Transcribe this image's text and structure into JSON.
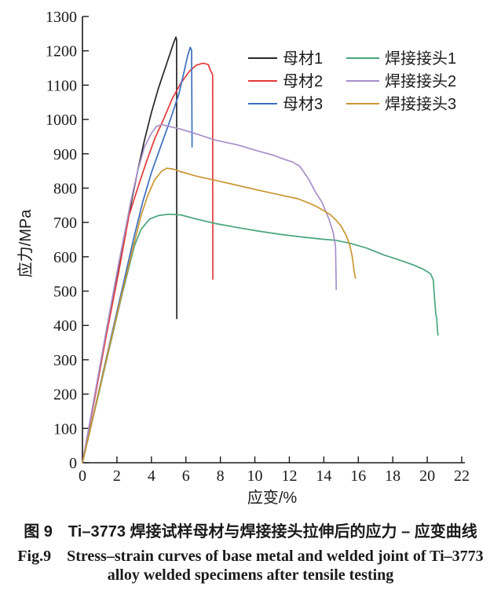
{
  "chart_data": {
    "type": "line",
    "title": "",
    "xlabel": "应变/%",
    "ylabel": "应力/MPa",
    "xlim": [
      0,
      22
    ],
    "ylim": [
      0,
      1300
    ],
    "xticks": [
      0,
      2,
      4,
      6,
      8,
      10,
      12,
      14,
      16,
      18,
      20,
      22
    ],
    "yticks": [
      0,
      100,
      200,
      300,
      400,
      500,
      600,
      700,
      800,
      900,
      1000,
      1100,
      1200,
      1300
    ],
    "grid": false,
    "axis_color": "#1a1a1a",
    "legend_position": "upper-right-inside, two columns",
    "series": [
      {
        "name": "母材1",
        "color": "#262626",
        "points": [
          [
            0,
            0
          ],
          [
            0.7,
            190
          ],
          [
            1.4,
            380
          ],
          [
            2.1,
            565
          ],
          [
            2.8,
            750
          ],
          [
            3.2,
            850
          ],
          [
            3.6,
            940
          ],
          [
            4.0,
            1020
          ],
          [
            4.4,
            1090
          ],
          [
            4.8,
            1150
          ],
          [
            5.1,
            1195
          ],
          [
            5.3,
            1225
          ],
          [
            5.42,
            1240
          ],
          [
            5.46,
            1232
          ],
          [
            5.47,
            420
          ]
        ]
      },
      {
        "name": "母材2",
        "color": "#e23a3a",
        "points": [
          [
            0,
            0
          ],
          [
            0.7,
            185
          ],
          [
            1.4,
            375
          ],
          [
            2.1,
            555
          ],
          [
            2.7,
            720
          ],
          [
            3.2,
            800
          ],
          [
            3.7,
            875
          ],
          [
            4.2,
            945
          ],
          [
            4.7,
            1000
          ],
          [
            5.2,
            1060
          ],
          [
            5.7,
            1105
          ],
          [
            6.2,
            1140
          ],
          [
            6.6,
            1158
          ],
          [
            7.0,
            1164
          ],
          [
            7.3,
            1160
          ],
          [
            7.4,
            1145
          ],
          [
            7.5,
            1136
          ],
          [
            7.55,
            1130
          ],
          [
            7.56,
            535
          ]
        ]
      },
      {
        "name": "母材3",
        "color": "#3d6ebf",
        "points": [
          [
            0,
            0
          ],
          [
            0.75,
            165
          ],
          [
            1.5,
            330
          ],
          [
            2.25,
            495
          ],
          [
            3.0,
            660
          ],
          [
            3.5,
            760
          ],
          [
            4.0,
            845
          ],
          [
            4.6,
            930
          ],
          [
            5.1,
            1000
          ],
          [
            5.6,
            1075
          ],
          [
            5.9,
            1140
          ],
          [
            6.1,
            1185
          ],
          [
            6.25,
            1210
          ],
          [
            6.33,
            1202
          ],
          [
            6.36,
            920
          ]
        ]
      },
      {
        "name": "焊接接头1",
        "color": "#49a57d",
        "points": [
          [
            0,
            0
          ],
          [
            0.75,
            160
          ],
          [
            1.5,
            320
          ],
          [
            2.25,
            480
          ],
          [
            3.0,
            630
          ],
          [
            3.4,
            680
          ],
          [
            3.9,
            710
          ],
          [
            4.4,
            720
          ],
          [
            5.0,
            724
          ],
          [
            5.7,
            722
          ],
          [
            6.6,
            710
          ],
          [
            7.7,
            697
          ],
          [
            9.0,
            685
          ],
          [
            10.2,
            675
          ],
          [
            11.5,
            665
          ],
          [
            12.8,
            657
          ],
          [
            14.0,
            651
          ],
          [
            14.7,
            648
          ],
          [
            15.5,
            640
          ],
          [
            16.5,
            625
          ],
          [
            17.5,
            605
          ],
          [
            18.3,
            592
          ],
          [
            19.2,
            576
          ],
          [
            19.8,
            563
          ],
          [
            20.2,
            550
          ],
          [
            20.35,
            532
          ],
          [
            20.42,
            480
          ],
          [
            20.5,
            432
          ],
          [
            20.55,
            420
          ],
          [
            20.6,
            380
          ],
          [
            20.63,
            372
          ]
        ]
      },
      {
        "name": "焊接接头2",
        "color": "#a78fc9",
        "points": [
          [
            0,
            0
          ],
          [
            0.7,
            195
          ],
          [
            1.4,
            390
          ],
          [
            2.1,
            580
          ],
          [
            2.8,
            760
          ],
          [
            3.2,
            850
          ],
          [
            3.6,
            920
          ],
          [
            4.0,
            960
          ],
          [
            4.3,
            980
          ],
          [
            4.6,
            985
          ],
          [
            5.0,
            980
          ],
          [
            5.7,
            972
          ],
          [
            6.6,
            958
          ],
          [
            7.7,
            940
          ],
          [
            9.0,
            926
          ],
          [
            10.2,
            908
          ],
          [
            11.0,
            897
          ],
          [
            11.6,
            886
          ],
          [
            12.2,
            876
          ],
          [
            12.6,
            864
          ],
          [
            13.1,
            828
          ],
          [
            13.5,
            790
          ],
          [
            13.9,
            758
          ],
          [
            14.3,
            710
          ],
          [
            14.55,
            670
          ],
          [
            14.68,
            630
          ],
          [
            14.72,
            505
          ]
        ]
      },
      {
        "name": "焊接接头3",
        "color": "#cb9633",
        "points": [
          [
            0,
            0
          ],
          [
            0.75,
            162
          ],
          [
            1.5,
            325
          ],
          [
            2.25,
            485
          ],
          [
            3.0,
            640
          ],
          [
            3.4,
            720
          ],
          [
            3.8,
            780
          ],
          [
            4.2,
            825
          ],
          [
            4.6,
            850
          ],
          [
            4.9,
            858
          ],
          [
            5.3,
            855
          ],
          [
            5.7,
            848
          ],
          [
            6.6,
            835
          ],
          [
            7.7,
            823
          ],
          [
            9.0,
            808
          ],
          [
            10.2,
            794
          ],
          [
            11.4,
            781
          ],
          [
            12.5,
            769
          ],
          [
            13.1,
            757
          ],
          [
            13.6,
            746
          ],
          [
            14.0,
            734
          ],
          [
            14.4,
            722
          ],
          [
            14.7,
            707
          ],
          [
            15.0,
            690
          ],
          [
            15.3,
            662
          ],
          [
            15.5,
            635
          ],
          [
            15.65,
            600
          ],
          [
            15.75,
            560
          ],
          [
            15.82,
            540
          ],
          [
            15.84,
            538
          ]
        ]
      }
    ]
  },
  "caption": {
    "line1": "图 9　Ti–3773 焊接试样母材与焊接接头拉伸后的应力 – 应变曲线",
    "line2": "Fig.9　Stress–strain curves of base metal and welded joint of Ti–3773",
    "line3": "alloy welded specimens after tensile testing"
  }
}
